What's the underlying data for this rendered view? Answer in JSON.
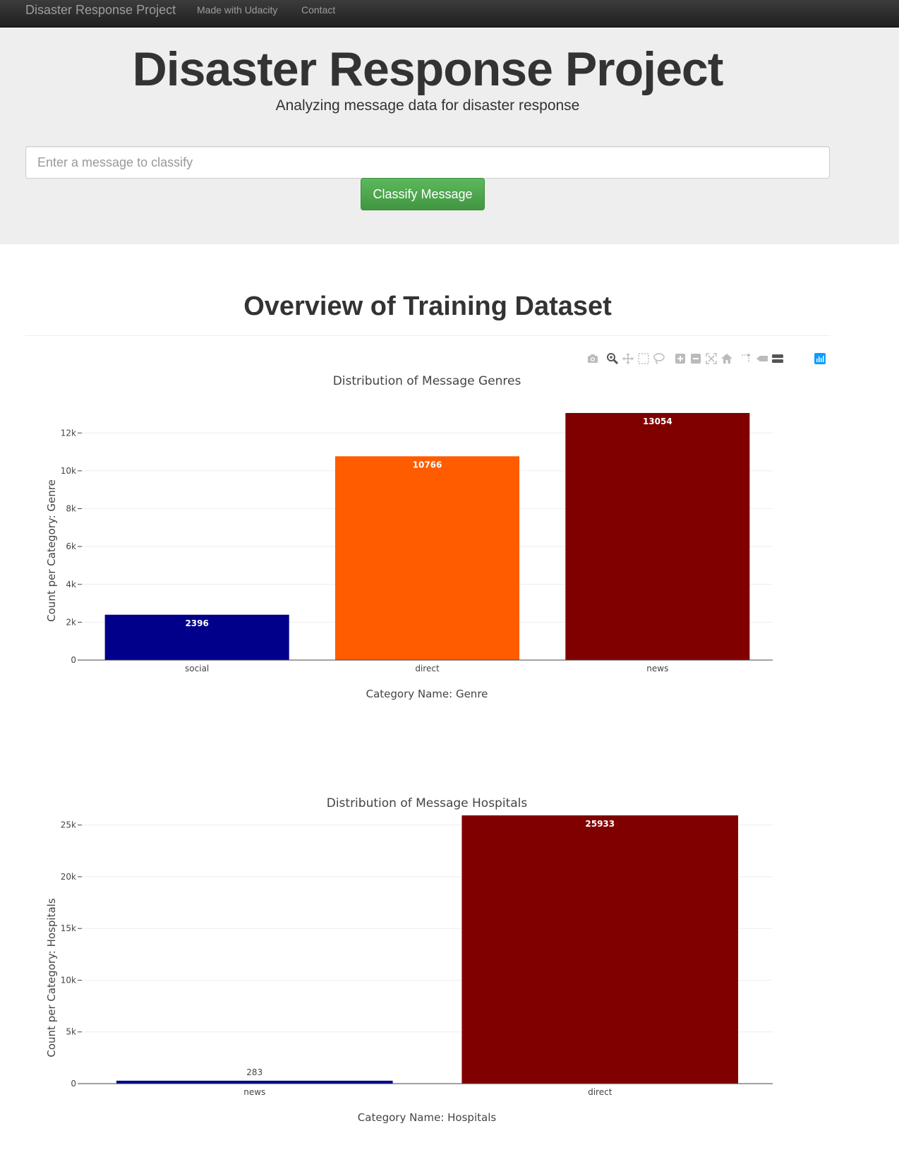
{
  "navbar": {
    "brand": "Disaster Response Project",
    "links": [
      "Made with Udacity",
      "Contact"
    ]
  },
  "jumbotron": {
    "title": "Disaster Response Project",
    "subtitle": "Analyzing message data for disaster response",
    "input_placeholder": "Enter a message to classify",
    "button_label": "Classify Message"
  },
  "overview": {
    "title": "Overview of Training Dataset"
  },
  "modebar_icons": [
    "camera-icon",
    "zoom-icon",
    "pan-icon",
    "box-select-icon",
    "lasso-select-icon",
    "zoom-in-icon",
    "zoom-out-icon",
    "autoscale-icon",
    "reset-axes-icon",
    "spike-lines-icon",
    "hover-closest-icon",
    "hover-compare-icon",
    "plotly-logo-icon"
  ],
  "chart_data": [
    {
      "type": "bar",
      "title": "Distribution of Message Genres",
      "xlabel": "Category Name: Genre",
      "ylabel": "Count per Category: Genre",
      "categories": [
        "social",
        "direct",
        "news"
      ],
      "values": [
        2396,
        10766,
        13054
      ],
      "colors": [
        "#00008b",
        "#ff5c00",
        "#800000"
      ],
      "label_color": "#ffffff",
      "ylim": [
        0,
        13054
      ],
      "yticks": [
        0,
        2000,
        4000,
        6000,
        8000,
        10000,
        12000
      ],
      "ytick_labels": [
        "0",
        "2k",
        "4k",
        "6k",
        "8k",
        "10k",
        "12k"
      ],
      "grid": true
    },
    {
      "type": "bar",
      "title": "Distribution of Message Hospitals",
      "xlabel": "Category Name: Hospitals",
      "ylabel": "Count per Category: Hospitals",
      "categories": [
        "news",
        "direct"
      ],
      "values": [
        283,
        25933
      ],
      "colors": [
        "#00008b",
        "#800000"
      ],
      "label_color": "#ffffff",
      "ylim": [
        0,
        25933
      ],
      "yticks": [
        0,
        5000,
        10000,
        15000,
        20000,
        25000
      ],
      "ytick_labels": [
        "0",
        "5k",
        "10k",
        "15k",
        "20k",
        "25k"
      ],
      "grid": true
    }
  ]
}
